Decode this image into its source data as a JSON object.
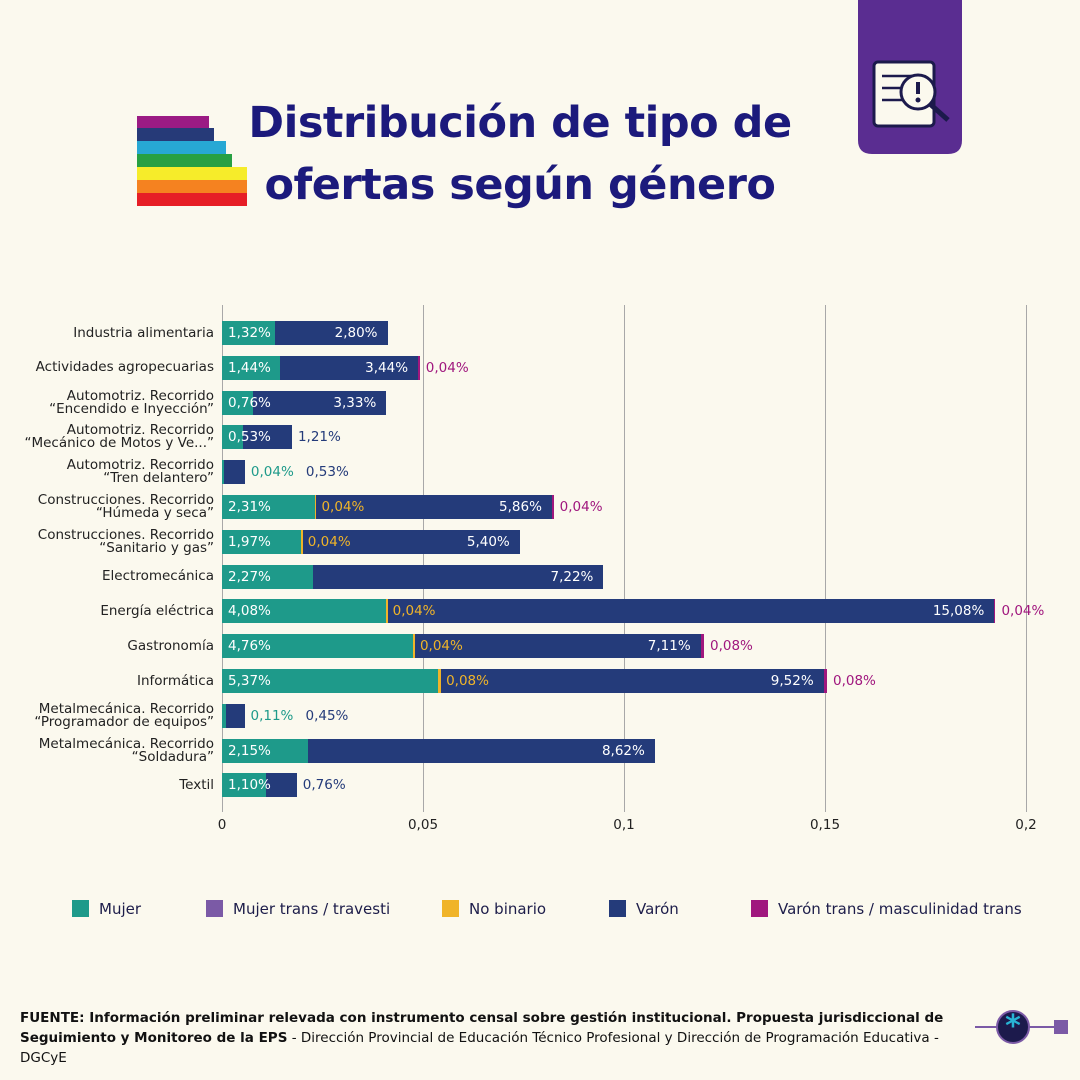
{
  "chart_data": {
    "type": "stacked_bar_horizontal",
    "title": "Distribución de tipo de\nofertas según género",
    "categories": [
      "Industria alimentaria",
      "Actividades agropecuarias",
      "Automotriz. Recorrido\n“Encendido e Inyección”",
      "Automotriz. Recorrido\n“Mecánico de Motos y Ve...”",
      "Automotriz. Recorrido\n“Tren delantero”",
      "Construcciones. Recorrido\n“Húmeda y seca”",
      "Construcciones. Recorrido\n“Sanitario y gas”",
      "Electromecánica",
      "Energía eléctrica",
      "Gastronomía",
      "Informática",
      "Metalmecánica. Recorrido\n“Programador de equipos”",
      "Metalmecánica. Recorrido\n“Soldadura”",
      "Textil"
    ],
    "series": [
      {
        "name": "Mujer",
        "color": "#1e9a8a",
        "values": [
          0.0132,
          0.0144,
          0.0076,
          0.0053,
          0.0004,
          0.0231,
          0.0197,
          0.0227,
          0.0408,
          0.0476,
          0.0537,
          0.0011,
          0.0215,
          0.011
        ],
        "value_labels": [
          "1,32%",
          "1,44%",
          "0,76%",
          "0,53%",
          "0,04%",
          "2,31%",
          "1,97%",
          "2,27%",
          "4,08%",
          "4,76%",
          "5,37%",
          "0,11%",
          "2,15%",
          "1,10%"
        ]
      },
      {
        "name": "Mujer trans / travesti",
        "color": "#7b5aa6",
        "values": [
          null,
          null,
          null,
          null,
          null,
          null,
          null,
          null,
          null,
          null,
          null,
          null,
          null,
          null
        ],
        "value_labels": [
          null,
          null,
          null,
          null,
          null,
          null,
          null,
          null,
          null,
          null,
          null,
          null,
          null,
          null
        ]
      },
      {
        "name": "No binario",
        "color": "#f0b429",
        "values": [
          null,
          null,
          null,
          null,
          null,
          0.0004,
          0.0004,
          null,
          0.0004,
          0.0004,
          0.0008,
          null,
          null,
          null
        ],
        "value_labels": [
          null,
          null,
          null,
          null,
          null,
          "0,04%",
          "0,04%",
          null,
          "0,04%",
          "0,04%",
          "0,08%",
          null,
          null,
          null
        ]
      },
      {
        "name": "Varón",
        "color": "#243b7a",
        "values": [
          0.028,
          0.0344,
          0.0333,
          0.0121,
          0.0053,
          0.0586,
          0.054,
          0.0722,
          0.1508,
          0.0711,
          0.0952,
          0.0045,
          0.0862,
          0.0076
        ],
        "value_labels": [
          "2,80%",
          "3,44%",
          "3,33%",
          "1,21%",
          "0,53%",
          "5,86%",
          "5,40%",
          "7,22%",
          "15,08%",
          "7,11%",
          "9,52%",
          "0,45%",
          "8,62%",
          "0,76%"
        ]
      },
      {
        "name": "Varón trans / masculinidad trans",
        "color": "#a0177e",
        "values": [
          null,
          0.0004,
          null,
          null,
          null,
          0.0004,
          null,
          null,
          0.0004,
          0.0008,
          0.0008,
          null,
          null,
          null
        ],
        "value_labels": [
          null,
          "0,04%",
          null,
          null,
          null,
          "0,04%",
          null,
          null,
          "0,04%",
          "0,08%",
          "0,08%",
          null,
          null,
          null
        ]
      }
    ],
    "xlim": [
      0,
      0.2
    ],
    "xticks": [
      0,
      {
        "value": 0.05,
        "label": "0,05"
      },
      {
        "value": 0.1,
        "label": "0,1"
      },
      {
        "value": 0.15,
        "label": "0,15"
      },
      {
        "value": 0.2,
        "label": "0,2"
      }
    ],
    "grid": true,
    "legend": "bottom"
  },
  "footer": {
    "source_bold": "FUENTE: Información preliminar relevada con instrumento censal sobre gestión institucional. Propuesta jurisdiccional de Seguimiento y Monitoreo de la EPS",
    "source_rest": " - Dirección Provincial de Educación Técnico Profesional y Dirección de Programación Educativa - DGCyE"
  }
}
